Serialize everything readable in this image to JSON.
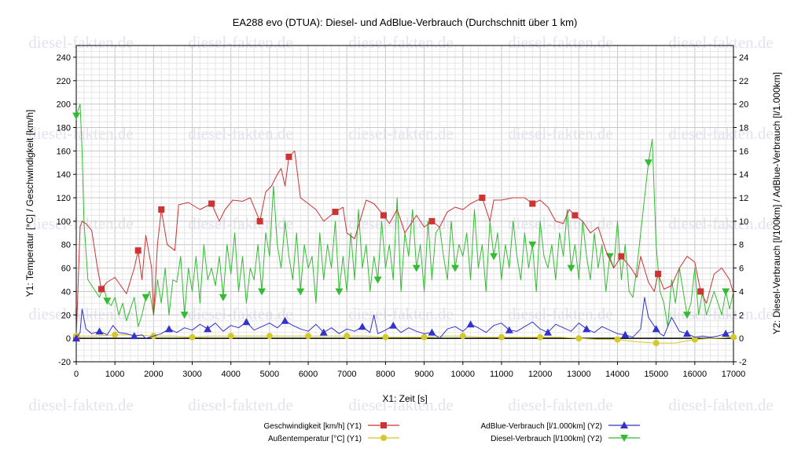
{
  "chart_data": {
    "type": "line",
    "title": "EA288 evo (DTUA): Diesel- und AdBlue-Verbrauch (Durchschnitt über 1 km)",
    "xlabel": "X1: Zeit [s]",
    "ylabel_left": "Y1: Temperatur [°C] / Geschwindigkeit [km/h]",
    "ylabel_right": "Y2: Diesel-Verbrauch [l/100km] / AdBlue-Verbrauch [l/1.000km]",
    "xlim": [
      0,
      17000
    ],
    "ylim_left": [
      -20,
      250
    ],
    "ylim_right": [
      -2,
      25
    ],
    "x_ticks": [
      "0",
      "1000",
      "2000",
      "3000",
      "4000",
      "5000",
      "6000",
      "7000",
      "8000",
      "9000",
      "10000",
      "11000",
      "12000",
      "13000",
      "14000",
      "15000",
      "16000",
      "17000"
    ],
    "y_ticks_left": [
      "-20",
      "0",
      "20",
      "40",
      "60",
      "80",
      "100",
      "120",
      "140",
      "160",
      "180",
      "200",
      "220",
      "240"
    ],
    "y_ticks_right": [
      "-2",
      "0",
      "2",
      "4",
      "6",
      "8",
      "10",
      "12",
      "14",
      "16",
      "18",
      "20",
      "22",
      "24"
    ],
    "watermark": "diesel-fakten.de",
    "grid": true,
    "legend_position": "bottom",
    "series": [
      {
        "name": "Geschwindigkeit [km/h] (Y1)",
        "axis": "left",
        "color": "#cc3333",
        "marker": "square",
        "x": [
          0,
          100,
          150,
          250,
          400,
          550,
          650,
          800,
          1000,
          1150,
          1300,
          1500,
          1600,
          1700,
          1800,
          1950,
          2000,
          2100,
          2200,
          2350,
          2550,
          2650,
          2900,
          3200,
          3500,
          3700,
          3850,
          4050,
          4300,
          4500,
          4750,
          4900,
          5050,
          5200,
          5300,
          5400,
          5500,
          5650,
          5800,
          6000,
          6200,
          6400,
          6700,
          6900,
          7000,
          7200,
          7500,
          7700,
          7950,
          8100,
          8300,
          8500,
          8800,
          9000,
          9200,
          9400,
          9600,
          9800,
          10000,
          10200,
          10500,
          10700,
          10800,
          11000,
          11300,
          11600,
          11800,
          12000,
          12200,
          12400,
          12600,
          12750,
          12900,
          13100,
          13300,
          13500,
          13700,
          13900,
          14100,
          14350,
          14500,
          14600,
          14800,
          14950,
          15050,
          15200,
          15400,
          15600,
          15800,
          16000,
          16150,
          16300,
          16500,
          16700,
          16900,
          17000
        ],
        "y": [
          0,
          95,
          100,
          98,
          92,
          60,
          42,
          48,
          52,
          45,
          38,
          60,
          75,
          50,
          88,
          60,
          20,
          80,
          110,
          80,
          75,
          114,
          116,
          110,
          115,
          100,
          110,
          118,
          117,
          120,
          100,
          125,
          130,
          140,
          145,
          130,
          155,
          160,
          120,
          115,
          110,
          100,
          108,
          112,
          90,
          85,
          118,
          115,
          105,
          98,
          110,
          90,
          105,
          95,
          100,
          95,
          108,
          112,
          110,
          115,
          120,
          100,
          118,
          118,
          120,
          120,
          115,
          118,
          112,
          100,
          98,
          110,
          105,
          100,
          90,
          95,
          75,
          60,
          70,
          60,
          52,
          70,
          48,
          40,
          55,
          42,
          45,
          60,
          70,
          65,
          40,
          30,
          55,
          60,
          50,
          38
        ]
      },
      {
        "name": "Außentemperatur [°C] (Y1)",
        "axis": "left",
        "color": "#d4c82a",
        "marker": "circle",
        "x": [
          0,
          500,
          1000,
          1500,
          2000,
          2500,
          3000,
          3500,
          4000,
          4500,
          5000,
          5500,
          6000,
          6500,
          7000,
          7500,
          8000,
          8500,
          9000,
          9500,
          10000,
          10500,
          11000,
          11500,
          12000,
          12500,
          13000,
          13500,
          14000,
          14500,
          15000,
          15500,
          16000,
          16500,
          17000
        ],
        "y": [
          2,
          2,
          3,
          3,
          2,
          2,
          1,
          2,
          2,
          2,
          2,
          2,
          2,
          2,
          2,
          2,
          1,
          1,
          1,
          2,
          2,
          1,
          1,
          1,
          1,
          1,
          0,
          -1,
          -1,
          -3,
          -4,
          -4,
          -1,
          0,
          1
        ]
      },
      {
        "name": "AdBlue-Verbrauch [l/1.000km] (Y2)",
        "axis": "right",
        "color": "#3333cc",
        "marker": "triangle-up",
        "x": [
          0,
          100,
          150,
          250,
          400,
          600,
          800,
          950,
          1100,
          1300,
          1500,
          1700,
          1800,
          2000,
          2200,
          2400,
          2600,
          2800,
          3000,
          3200,
          3400,
          3600,
          3800,
          4000,
          4200,
          4400,
          4600,
          4800,
          5000,
          5200,
          5400,
          5600,
          5800,
          6000,
          6200,
          6400,
          6600,
          6800,
          7000,
          7200,
          7400,
          7600,
          7700,
          7800,
          8000,
          8200,
          8400,
          8600,
          8800,
          9000,
          9200,
          9400,
          9600,
          9800,
          10000,
          10200,
          10400,
          10600,
          10800,
          11000,
          11200,
          11400,
          11600,
          11800,
          12000,
          12200,
          12400,
          12600,
          12800,
          13000,
          13200,
          13400,
          13600,
          13800,
          14000,
          14200,
          14400,
          14600,
          14700,
          14800,
          15000,
          15100,
          15200,
          15400,
          15600,
          15800,
          16000,
          16200,
          16400,
          16600,
          16800,
          17000
        ],
        "y": [
          0,
          0.5,
          2.5,
          0.8,
          0.4,
          0.6,
          0.3,
          1.1,
          0.5,
          0.4,
          0.2,
          0.3,
          0,
          0.2,
          0.4,
          0.8,
          0.5,
          0.9,
          0.7,
          1.2,
          0.8,
          1.3,
          0.6,
          1.1,
          0.9,
          1.4,
          0.7,
          1.0,
          1.3,
          0.9,
          1.5,
          1.1,
          0.8,
          0.6,
          1.2,
          0.5,
          0.9,
          0.4,
          0.8,
          0.6,
          1.0,
          0.5,
          2.0,
          0.4,
          0.7,
          1.1,
          0.5,
          0.9,
          0.6,
          0.4,
          0.5,
          0,
          0.8,
          1.0,
          0.6,
          1.2,
          0.9,
          0.5,
          1.1,
          1.3,
          0.7,
          0.6,
          1.0,
          1.4,
          0.8,
          0.5,
          1.2,
          0.9,
          0.6,
          1.3,
          0.8,
          0.5,
          1.0,
          0.7,
          0.4,
          0.3,
          0.1,
          0.8,
          3.5,
          1.8,
          0.8,
          0.4,
          0.2,
          1.8,
          0.6,
          0.4,
          0.1,
          0.2,
          0.1,
          0.2,
          0.4,
          0.6
        ]
      },
      {
        "name": "Diesel-Verbrauch [l/100km] (Y2)",
        "axis": "right",
        "color": "#33bb33",
        "marker": "triangle-down",
        "x": [
          0,
          50,
          100,
          150,
          200,
          300,
          400,
          500,
          600,
          700,
          800,
          900,
          1000,
          1100,
          1200,
          1300,
          1400,
          1500,
          1600,
          1700,
          1800,
          1900,
          2000,
          2100,
          2200,
          2300,
          2400,
          2500,
          2600,
          2700,
          2800,
          2900,
          3000,
          3100,
          3200,
          3300,
          3400,
          3500,
          3600,
          3700,
          3800,
          3900,
          4000,
          4100,
          4200,
          4300,
          4400,
          4500,
          4600,
          4700,
          4800,
          4900,
          5000,
          5100,
          5200,
          5300,
          5400,
          5500,
          5600,
          5700,
          5800,
          5900,
          6000,
          6100,
          6200,
          6300,
          6400,
          6500,
          6600,
          6700,
          6800,
          6900,
          7000,
          7100,
          7200,
          7300,
          7400,
          7500,
          7600,
          7700,
          7800,
          7900,
          8000,
          8100,
          8200,
          8300,
          8400,
          8500,
          8600,
          8700,
          8800,
          8900,
          9000,
          9100,
          9200,
          9300,
          9400,
          9500,
          9600,
          9700,
          9800,
          9900,
          10000,
          10100,
          10200,
          10300,
          10400,
          10500,
          10600,
          10700,
          10800,
          10900,
          11000,
          11100,
          11200,
          11300,
          11400,
          11500,
          11600,
          11700,
          11800,
          11900,
          12000,
          12100,
          12200,
          12300,
          12400,
          12500,
          12600,
          12700,
          12800,
          12900,
          13000,
          13100,
          13200,
          13300,
          13400,
          13500,
          13600,
          13700,
          13800,
          13900,
          14000,
          14100,
          14200,
          14300,
          14400,
          14500,
          14600,
          14700,
          14800,
          14900,
          15000,
          15100,
          15200,
          15300,
          15400,
          15500,
          15600,
          15700,
          15800,
          15900,
          16000,
          16100,
          16200,
          16300,
          16400,
          16500,
          16600,
          16700,
          16800,
          16900,
          17000
        ],
        "y": [
          19,
          19.5,
          20,
          16,
          10,
          5,
          4.5,
          4,
          3.5,
          4.5,
          3.2,
          2.8,
          3.5,
          2,
          3,
          1.5,
          2.5,
          3.5,
          1,
          2,
          3.5,
          4,
          2,
          5,
          3,
          6,
          2,
          5,
          4.8,
          7,
          2,
          6,
          4,
          7,
          3,
          8,
          5,
          6,
          4.5,
          7,
          3.5,
          8,
          5.5,
          9,
          4,
          7,
          3,
          6,
          5,
          8,
          4,
          9,
          7,
          13,
          8,
          6,
          10,
          7,
          5,
          9,
          4,
          8,
          6,
          7,
          3,
          9,
          5,
          8,
          6,
          10,
          4,
          7,
          4,
          9,
          5,
          11,
          6,
          8,
          4,
          7,
          5,
          10,
          6,
          8,
          5,
          12,
          4,
          9,
          7,
          11,
          6,
          8,
          4,
          10,
          5,
          9,
          9.5,
          7,
          5,
          10,
          6,
          8,
          7,
          9,
          5,
          11,
          6,
          8,
          4,
          10,
          7,
          9,
          5,
          8,
          6,
          10,
          7,
          5,
          9,
          6,
          8,
          4,
          10,
          7,
          6,
          8,
          5,
          9,
          7,
          11,
          6,
          8,
          5,
          10,
          7,
          5,
          9,
          6,
          8,
          4,
          7,
          6,
          10,
          5,
          8,
          4,
          3.5,
          6,
          9,
          12,
          15,
          17,
          8,
          4,
          3,
          1,
          5,
          3,
          6,
          4,
          2,
          3,
          6,
          2,
          4,
          2,
          3,
          4,
          3,
          2,
          4,
          2.5,
          4
        ]
      }
    ]
  }
}
